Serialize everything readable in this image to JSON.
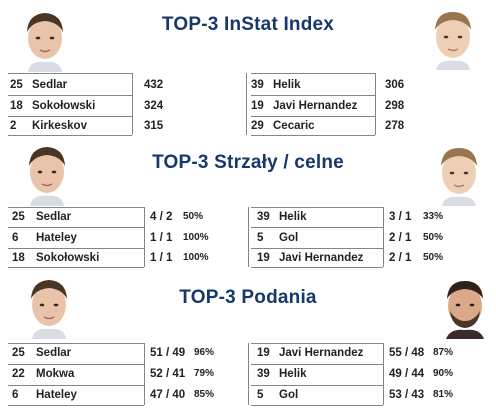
{
  "sections": [
    {
      "title": "TOP-3 InStat Index",
      "left": [
        {
          "num": "25",
          "name": "Sedlar",
          "value": "432",
          "pct": ""
        },
        {
          "num": "18",
          "name": "Sokołowski",
          "value": "324",
          "pct": ""
        },
        {
          "num": "2",
          "name": "Kirkeskov",
          "value": "315",
          "pct": ""
        }
      ],
      "right": [
        {
          "num": "39",
          "name": "Helik",
          "value": "306",
          "pct": ""
        },
        {
          "num": "19",
          "name": "Javi Hernandez",
          "value": "298",
          "pct": ""
        },
        {
          "num": "29",
          "name": "Cecaric",
          "value": "278",
          "pct": ""
        }
      ]
    },
    {
      "title": "TOP-3 Strzały / celne",
      "left": [
        {
          "num": "25",
          "name": "Sedlar",
          "value": "4 / 2",
          "pct": "50%"
        },
        {
          "num": "6",
          "name": "Hateley",
          "value": "1 / 1",
          "pct": "100%"
        },
        {
          "num": "18",
          "name": "Sokołowski",
          "value": "1 / 1",
          "pct": "100%"
        }
      ],
      "right": [
        {
          "num": "39",
          "name": "Helik",
          "value": "3 / 1",
          "pct": "33%"
        },
        {
          "num": "5",
          "name": "Gol",
          "value": "2 / 1",
          "pct": "50%"
        },
        {
          "num": "19",
          "name": "Javi Hernandez",
          "value": "2 / 1",
          "pct": "50%"
        }
      ]
    },
    {
      "title": "TOP-3 Podania",
      "left": [
        {
          "num": "25",
          "name": "Sedlar",
          "value": "51 / 49",
          "pct": "96%"
        },
        {
          "num": "22",
          "name": "Mokwa",
          "value": "52 / 41",
          "pct": "79%"
        },
        {
          "num": "6",
          "name": "Hateley",
          "value": "47 / 40",
          "pct": "85%"
        }
      ],
      "right": [
        {
          "num": "19",
          "name": "Javi Hernandez",
          "value": "55 / 48",
          "pct": "87%"
        },
        {
          "num": "39",
          "name": "Helik",
          "value": "49 / 44",
          "pct": "90%"
        },
        {
          "num": "5",
          "name": "Gol",
          "value": "53 / 43",
          "pct": "81%"
        }
      ]
    }
  ],
  "colors": {
    "title": "#17386b",
    "text": "#222222",
    "rule": "#7c8794"
  }
}
